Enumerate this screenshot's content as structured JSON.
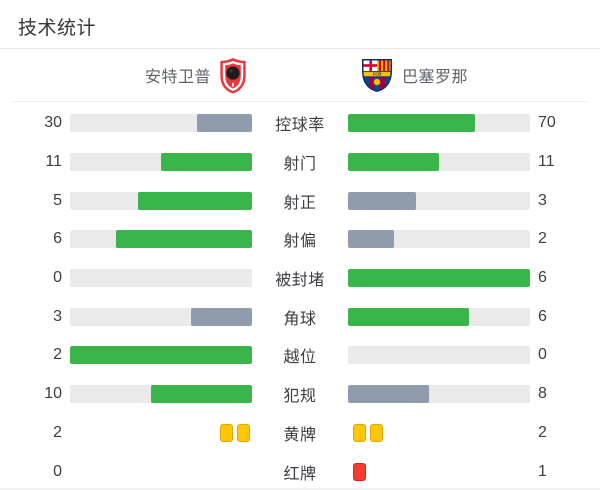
{
  "title": "技术统计",
  "teams": {
    "home": {
      "name": "安特卫普",
      "crest": "antwerp-crest"
    },
    "away": {
      "name": "巴塞罗那",
      "crest": "barcelona-crest"
    }
  },
  "colors": {
    "green": "#3ab54a",
    "gray": "#8f9cab",
    "track": "#eaeaea",
    "yellow_card": "#ffc60a",
    "red_card": "#f53b30"
  },
  "stats": [
    {
      "label": "控球率",
      "home": "30",
      "away": "70",
      "type": "bar",
      "home_pct": 30,
      "away_pct": 70,
      "home_color": "gray",
      "away_color": "green"
    },
    {
      "label": "射门",
      "home": "11",
      "away": "11",
      "type": "bar",
      "home_pct": 50,
      "away_pct": 50,
      "home_color": "green",
      "away_color": "green"
    },
    {
      "label": "射正",
      "home": "5",
      "away": "3",
      "type": "bar",
      "home_pct": 62.5,
      "away_pct": 37.5,
      "home_color": "green",
      "away_color": "gray"
    },
    {
      "label": "射偏",
      "home": "6",
      "away": "2",
      "type": "bar",
      "home_pct": 75,
      "away_pct": 25,
      "home_color": "green",
      "away_color": "gray"
    },
    {
      "label": "被封堵",
      "home": "0",
      "away": "6",
      "type": "bar",
      "home_pct": 0,
      "away_pct": 100,
      "home_color": "none",
      "away_color": "green"
    },
    {
      "label": "角球",
      "home": "3",
      "away": "6",
      "type": "bar",
      "home_pct": 33.3,
      "away_pct": 66.7,
      "home_color": "gray",
      "away_color": "green"
    },
    {
      "label": "越位",
      "home": "2",
      "away": "0",
      "type": "bar",
      "home_pct": 100,
      "away_pct": 0,
      "home_color": "green",
      "away_color": "none"
    },
    {
      "label": "犯规",
      "home": "10",
      "away": "8",
      "type": "bar",
      "home_pct": 55.6,
      "away_pct": 44.4,
      "home_color": "green",
      "away_color": "gray"
    },
    {
      "label": "黄牌",
      "home": "2",
      "away": "2",
      "type": "cards",
      "card_color": "yellow",
      "home_cards": 2,
      "away_cards": 2
    },
    {
      "label": "红牌",
      "home": "0",
      "away": "1",
      "type": "cards",
      "card_color": "red",
      "home_cards": 0,
      "away_cards": 1
    }
  ],
  "chart_data": {
    "type": "bar",
    "title": "技术统计",
    "categories": [
      "控球率",
      "射门",
      "射正",
      "射偏",
      "被封堵",
      "角球",
      "越位",
      "犯规",
      "黄牌",
      "红牌"
    ],
    "series": [
      {
        "name": "安特卫普",
        "values": [
          30,
          11,
          5,
          6,
          0,
          3,
          2,
          10,
          2,
          0
        ]
      },
      {
        "name": "巴塞罗那",
        "values": [
          70,
          11,
          3,
          2,
          6,
          6,
          0,
          8,
          2,
          1
        ]
      }
    ],
    "layout": "paired horizontal bars, home fills right-aligned, away fills left-aligned, fill ratio = value/(home+away), green = higher or tied side, blue-gray = lower side"
  }
}
